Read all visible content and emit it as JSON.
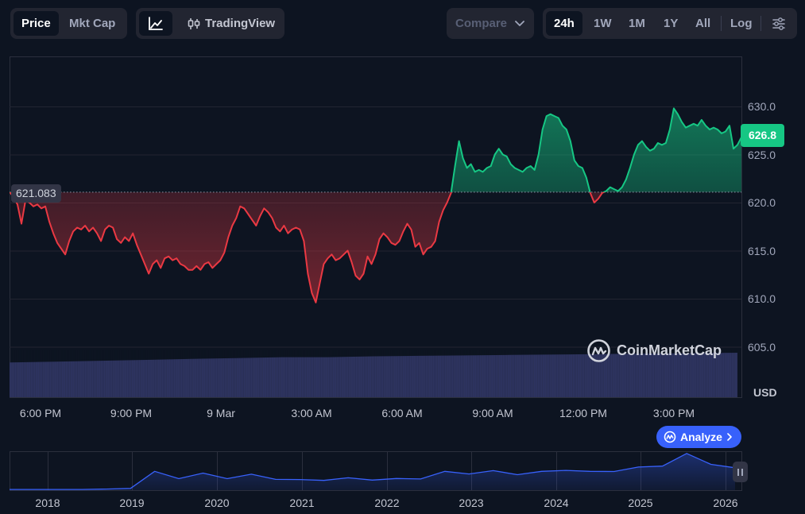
{
  "toolbar": {
    "view_tabs": [
      {
        "label": "Price",
        "active": true
      },
      {
        "label": "Mkt Cap",
        "active": false
      }
    ],
    "chart_tabs": [
      {
        "label": "",
        "icon": "line-chart-icon",
        "active": true
      },
      {
        "label": "TradingView",
        "icon": "candlestick-icon",
        "active": false
      }
    ],
    "compare_label": "Compare",
    "range_tabs": [
      {
        "label": "24h",
        "active": true
      },
      {
        "label": "1W",
        "active": false
      },
      {
        "label": "1M",
        "active": false
      },
      {
        "label": "1Y",
        "active": false
      },
      {
        "label": "All",
        "active": false
      },
      {
        "label": "Log",
        "active": false
      }
    ],
    "settings_icon": "sliders-icon"
  },
  "main_chart": {
    "current_price": "626.8",
    "reference_price": "621.083",
    "currency": "USD",
    "watermark": "CoinMarketCap",
    "colors": {
      "up": "#16c784",
      "down": "#ea3943",
      "volume": "#2f3561"
    }
  },
  "analyze_label": "Analyze",
  "chart_data": {
    "type": "area",
    "ylim": [
      604,
      634
    ],
    "yticks": [
      "630.0",
      "625.0",
      "620.0",
      "615.0",
      "610.0",
      "605.0"
    ],
    "xticks": [
      "6:00 PM",
      "9:00 PM",
      "9 Mar",
      "3:00 AM",
      "6:00 AM",
      "9:00 AM",
      "12:00 PM",
      "3:00 PM"
    ],
    "baseline": 621.083,
    "series": [
      {
        "values": [
          621.1,
          620.6,
          619.8,
          617.8,
          620.2,
          620.0,
          619.6,
          619.8,
          619.4,
          619.6,
          618.0,
          616.8,
          615.8,
          615.2,
          614.6,
          616.0,
          617.0,
          617.4,
          617.2,
          617.6,
          617.0,
          617.4,
          616.8,
          616.0,
          617.2,
          617.6,
          617.4,
          616.2,
          615.8,
          616.4,
          616.0,
          616.8,
          615.6,
          614.6,
          613.6,
          612.6,
          613.6,
          614.0,
          613.2,
          614.2,
          614.4,
          614.0,
          614.2,
          613.6,
          613.4,
          613.0,
          613.0,
          613.4,
          613.0,
          613.6,
          613.8,
          613.2,
          613.6,
          614.0,
          614.8,
          616.4,
          617.6,
          618.4,
          619.6,
          619.4,
          618.8,
          618.2,
          617.6,
          618.6,
          619.4,
          619.0,
          618.4,
          617.4,
          617.0,
          617.6,
          616.8,
          617.2,
          617.4,
          617.2,
          616.0,
          612.6,
          610.6,
          609.6,
          611.6,
          613.6,
          614.2,
          614.6,
          614.0,
          614.2,
          614.6,
          615.0,
          613.8,
          612.4,
          612.0,
          612.6,
          614.4,
          613.6,
          614.6,
          616.2,
          616.8,
          616.4,
          615.8,
          615.6,
          616.0,
          617.0,
          617.8,
          617.2,
          615.4,
          615.8,
          614.6,
          615.2,
          615.4,
          616.0,
          618.0,
          619.2,
          620.0,
          621.0,
          623.8,
          626.4,
          624.6,
          623.6,
          624.0,
          623.2,
          623.4,
          623.2,
          623.6,
          623.8,
          625.0,
          625.6,
          625.0,
          624.8,
          624.0,
          623.6,
          623.4,
          623.2,
          623.6,
          623.8,
          623.4,
          625.0,
          627.6,
          629.0,
          629.2,
          629.0,
          628.8,
          628.0,
          627.6,
          626.4,
          624.4,
          623.8,
          623.6,
          622.6,
          621.0,
          620.0,
          620.4,
          621.0,
          621.2,
          621.6,
          621.4,
          621.2,
          621.6,
          622.4,
          623.6,
          625.0,
          626.0,
          626.4,
          625.8,
          625.4,
          625.6,
          626.2,
          626.0,
          626.2,
          627.6,
          629.8,
          629.2,
          628.4,
          627.8,
          628.0,
          628.2,
          628.0,
          628.6,
          628.0,
          627.6,
          627.8,
          627.6,
          627.2,
          627.4,
          628.0,
          625.6,
          626.0,
          626.8
        ]
      }
    ],
    "volume": [
      0.78,
      0.8,
      0.82,
      0.84,
      0.86,
      0.88,
      0.9,
      0.9,
      0.92,
      0.93,
      0.94,
      0.95,
      0.96,
      0.97,
      0.98,
      0.99,
      1.0
    ]
  },
  "overview_chart": {
    "years": [
      "2018",
      "2019",
      "2020",
      "2021",
      "2022",
      "2023",
      "2024",
      "2025",
      "2026"
    ],
    "values": [
      0.02,
      0.02,
      0.02,
      0.02,
      0.03,
      0.05,
      0.5,
      0.35,
      0.45,
      0.35,
      0.42,
      0.33,
      0.27,
      0.3,
      0.32,
      0.31,
      0.3,
      0.34,
      0.5,
      0.48,
      0.52,
      0.46,
      0.5,
      0.58,
      0.5,
      0.55,
      0.62,
      0.7,
      1.0,
      0.75,
      0.6
    ]
  }
}
